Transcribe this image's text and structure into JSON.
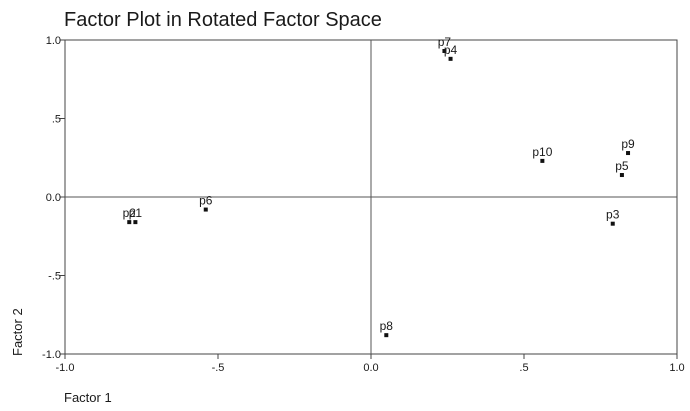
{
  "chart_data": {
    "type": "scatter",
    "title": "Factor Plot in Rotated Factor Space",
    "xlabel": "Factor 1",
    "ylabel": "Factor 2",
    "xlim": [
      -1.0,
      1.0
    ],
    "ylim": [
      -1.0,
      1.0
    ],
    "xticks": [
      {
        "value": -1.0,
        "label": "-1.0"
      },
      {
        "value": -0.5,
        "label": "-.5"
      },
      {
        "value": 0.0,
        "label": "0.0"
      },
      {
        "value": 0.5,
        "label": ".5"
      },
      {
        "value": 1.0,
        "label": "1.0"
      }
    ],
    "yticks": [
      {
        "value": 1.0,
        "label": "1.0"
      },
      {
        "value": 0.5,
        "label": ".5"
      },
      {
        "value": 0.0,
        "label": "0.0"
      },
      {
        "value": -0.5,
        "label": "-.5"
      },
      {
        "value": -1.0,
        "label": "-1.0"
      }
    ],
    "reference_lines": {
      "x": 0,
      "y": 0
    },
    "grid": false,
    "points": [
      {
        "label": "p7",
        "x": 0.24,
        "y": 0.93
      },
      {
        "label": "p4",
        "x": 0.26,
        "y": 0.88
      },
      {
        "label": "p10",
        "x": 0.56,
        "y": 0.23
      },
      {
        "label": "p9",
        "x": 0.84,
        "y": 0.28
      },
      {
        "label": "p5",
        "x": 0.82,
        "y": 0.14
      },
      {
        "label": "p3",
        "x": 0.79,
        "y": -0.17
      },
      {
        "label": "p2",
        "x": -0.79,
        "y": -0.16
      },
      {
        "label": "p1",
        "x": -0.77,
        "y": -0.16
      },
      {
        "label": "p6",
        "x": -0.54,
        "y": -0.08
      },
      {
        "label": "p8",
        "x": 0.05,
        "y": -0.88
      }
    ]
  }
}
